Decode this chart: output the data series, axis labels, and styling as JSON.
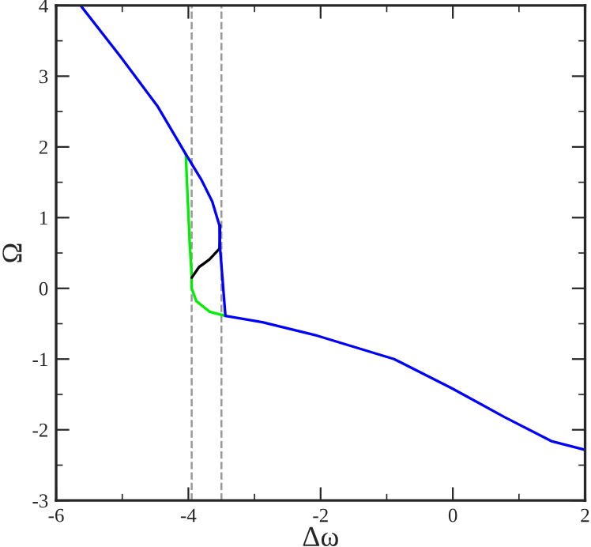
{
  "chart_data": {
    "type": "line",
    "xlabel": "Δω",
    "ylabel": "Ω",
    "xlim": [
      -6,
      2
    ],
    "ylim": [
      -3,
      4
    ],
    "xticks": [
      -6,
      -4,
      -2,
      0,
      2
    ],
    "yticks": [
      -3,
      -2,
      -1,
      0,
      1,
      2,
      3,
      4
    ],
    "grid": false,
    "legend": false,
    "marker": "none",
    "line_style": "solid",
    "series": [
      {
        "color": "#00ee00",
        "x": [
          -4.04,
          -3.98,
          -3.95,
          -3.95,
          -3.88,
          -3.68,
          -3.44
        ],
        "values": [
          1.9,
          0.64,
          0.19,
          0.0,
          -0.18,
          -0.33,
          -0.39
        ]
      },
      {
        "color": "#000000",
        "x": [
          -3.95,
          -3.84,
          -3.68,
          -3.53,
          -3.52
        ],
        "values": [
          0.15,
          0.3,
          0.41,
          0.56,
          0.89
        ]
      },
      {
        "color": "#0000ff",
        "x": [
          -5.63,
          -5.03,
          -4.47,
          -4.04,
          -3.8,
          -3.64,
          -3.53,
          -3.52,
          -3.44,
          -2.88,
          -2.05,
          -0.89,
          -0.02,
          0.78,
          1.49,
          1.99
        ],
        "values": [
          4.0,
          3.28,
          2.58,
          1.9,
          1.53,
          1.23,
          0.89,
          0.56,
          -0.39,
          -0.48,
          -0.67,
          -1.0,
          -1.41,
          -1.82,
          -2.16,
          -2.28
        ]
      }
    ],
    "ref_lines": [
      {
        "axis": "x",
        "value": -3.95,
        "color": "#999999",
        "line_style": "dashed"
      },
      {
        "axis": "x",
        "value": -3.5,
        "color": "#999999",
        "line_style": "dashed"
      }
    ]
  }
}
